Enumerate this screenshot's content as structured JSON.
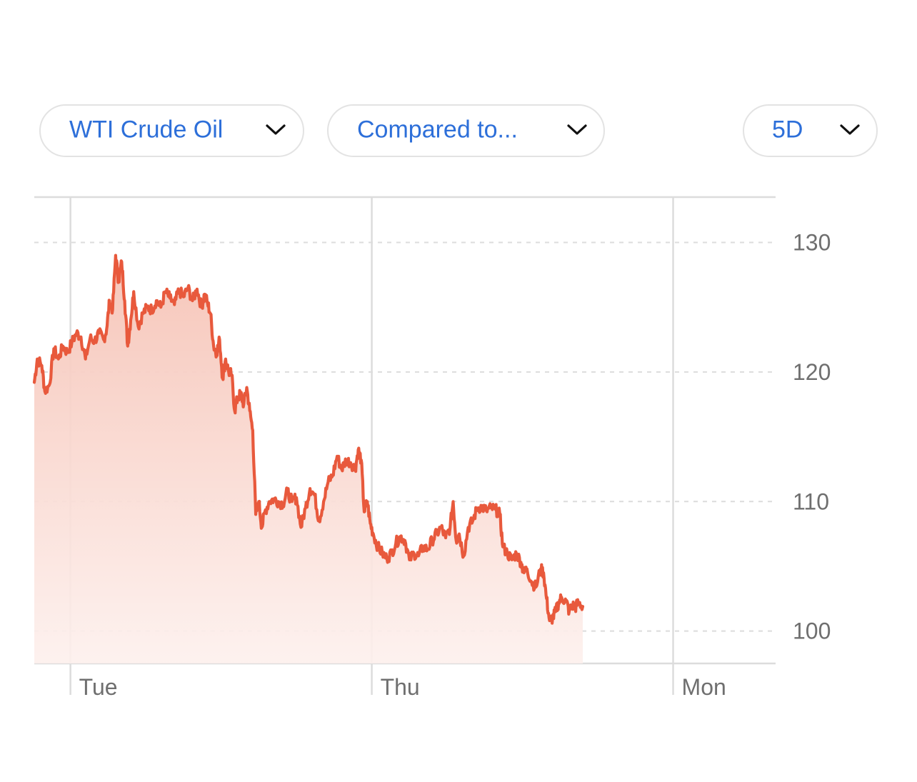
{
  "controls": {
    "symbol_label": "WTI Crude Oil",
    "compare_label": "Compared to...",
    "range_label": "5D",
    "chevron_icon": "chevron-down-icon"
  },
  "colors": {
    "accent_text": "#2d6fd9",
    "line": "#e8593c",
    "fill_top": "#f6c3b6",
    "fill_bottom": "#fdf0ed",
    "grid": "#dcdcdc",
    "axis_text": "#6f6f6f"
  },
  "chart_data": {
    "type": "area",
    "title": "",
    "xlabel": "",
    "ylabel": "",
    "ylim": [
      97.5,
      133.5
    ],
    "y_ticks": [
      100,
      110,
      120,
      130
    ],
    "y_axis_position": "right",
    "grid": "dashed horizontal at y ticks, solid vertical at day starts",
    "x_ticks": [
      {
        "label": "Tue",
        "x": 1.0
      },
      {
        "label": "Thu",
        "x": 2.0
      },
      {
        "label": "Mon",
        "x": 3.0
      }
    ],
    "xlim": [
      0.88,
      3.34
    ],
    "series": [
      {
        "name": "",
        "points": [
          [
            0.88,
            119.2
          ],
          [
            0.89,
            121.0
          ],
          [
            0.905,
            120.5
          ],
          [
            0.915,
            118.5
          ],
          [
            0.93,
            119.0
          ],
          [
            0.945,
            121.8
          ],
          [
            0.96,
            121.0
          ],
          [
            0.975,
            122.0
          ],
          [
            0.99,
            121.5
          ],
          [
            1.005,
            122.3
          ],
          [
            1.02,
            123.0
          ],
          [
            1.035,
            122.7
          ],
          [
            1.05,
            121.0
          ],
          [
            1.065,
            122.6
          ],
          [
            1.08,
            122.4
          ],
          [
            1.095,
            123.0
          ],
          [
            1.11,
            122.5
          ],
          [
            1.12,
            123.3
          ],
          [
            1.13,
            125.5
          ],
          [
            1.14,
            124.8
          ],
          [
            1.15,
            129.0
          ],
          [
            1.16,
            127.0
          ],
          [
            1.17,
            128.5
          ],
          [
            1.18,
            125.5
          ],
          [
            1.19,
            122.0
          ],
          [
            1.2,
            124.0
          ],
          [
            1.21,
            126.2
          ],
          [
            1.225,
            123.5
          ],
          [
            1.24,
            124.5
          ],
          [
            1.255,
            125.0
          ],
          [
            1.27,
            124.8
          ],
          [
            1.285,
            125.5
          ],
          [
            1.3,
            125.0
          ],
          [
            1.315,
            126.2
          ],
          [
            1.33,
            125.7
          ],
          [
            1.345,
            125.2
          ],
          [
            1.36,
            126.3
          ],
          [
            1.375,
            125.8
          ],
          [
            1.39,
            126.5
          ],
          [
            1.405,
            125.5
          ],
          [
            1.42,
            126.4
          ],
          [
            1.435,
            125.0
          ],
          [
            1.445,
            126.0
          ],
          [
            1.455,
            125.3
          ],
          [
            1.465,
            124.5
          ],
          [
            1.475,
            122.0
          ],
          [
            1.485,
            121.5
          ],
          [
            1.495,
            122.5
          ],
          [
            1.505,
            119.5
          ],
          [
            1.515,
            121.0
          ],
          [
            1.525,
            120.0
          ],
          [
            1.535,
            119.8
          ],
          [
            1.545,
            117.0
          ],
          [
            1.555,
            118.0
          ],
          [
            1.565,
            118.3
          ],
          [
            1.575,
            117.5
          ],
          [
            1.585,
            118.8
          ],
          [
            1.595,
            117.0
          ],
          [
            1.605,
            115.5
          ],
          [
            1.615,
            109.0
          ],
          [
            1.625,
            110.0
          ],
          [
            1.635,
            108.0
          ],
          [
            1.645,
            109.2
          ],
          [
            1.66,
            110.0
          ],
          [
            1.675,
            110.2
          ],
          [
            1.69,
            110.0
          ],
          [
            1.705,
            109.8
          ],
          [
            1.72,
            110.8
          ],
          [
            1.735,
            110.0
          ],
          [
            1.75,
            110.3
          ],
          [
            1.765,
            108.0
          ],
          [
            1.78,
            109.5
          ],
          [
            1.795,
            111.0
          ],
          [
            1.81,
            110.5
          ],
          [
            1.825,
            108.5
          ],
          [
            1.84,
            110.0
          ],
          [
            1.855,
            111.5
          ],
          [
            1.87,
            112.0
          ],
          [
            1.885,
            113.5
          ],
          [
            1.9,
            112.5
          ],
          [
            1.915,
            113.2
          ],
          [
            1.93,
            113.0
          ],
          [
            1.945,
            112.5
          ],
          [
            1.955,
            114.0
          ],
          [
            1.965,
            113.2
          ],
          [
            1.975,
            109.2
          ],
          [
            1.985,
            110.0
          ],
          [
            1.995,
            108.3
          ],
          [
            2.005,
            107.5
          ],
          [
            2.02,
            106.5
          ],
          [
            2.035,
            106.0
          ],
          [
            2.05,
            105.6
          ],
          [
            2.065,
            106.0
          ],
          [
            2.08,
            106.8
          ],
          [
            2.095,
            107.3
          ],
          [
            2.11,
            107.0
          ],
          [
            2.125,
            105.5
          ],
          [
            2.14,
            106.0
          ],
          [
            2.155,
            105.8
          ],
          [
            2.17,
            106.5
          ],
          [
            2.185,
            106.3
          ],
          [
            2.2,
            107.0
          ],
          [
            2.215,
            107.5
          ],
          [
            2.23,
            108.0
          ],
          [
            2.245,
            107.2
          ],
          [
            2.26,
            108.0
          ],
          [
            2.27,
            110.0
          ],
          [
            2.28,
            107.0
          ],
          [
            2.29,
            107.5
          ],
          [
            2.305,
            105.8
          ],
          [
            2.32,
            108.0
          ],
          [
            2.335,
            108.5
          ],
          [
            2.35,
            109.5
          ],
          [
            2.365,
            109.6
          ],
          [
            2.38,
            109.3
          ],
          [
            2.395,
            109.5
          ],
          [
            2.41,
            109.4
          ],
          [
            2.425,
            109.0
          ],
          [
            2.435,
            106.5
          ],
          [
            2.45,
            106.0
          ],
          [
            2.465,
            105.5
          ],
          [
            2.48,
            106.0
          ],
          [
            2.495,
            105.3
          ],
          [
            2.505,
            104.5
          ],
          [
            2.515,
            104.8
          ],
          [
            2.53,
            103.8
          ],
          [
            2.545,
            103.4
          ],
          [
            2.56,
            104.8
          ],
          [
            2.57,
            104.5
          ],
          [
            2.58,
            102.5
          ],
          [
            2.59,
            100.8
          ],
          [
            2.6,
            101.0
          ],
          [
            2.61,
            101.5
          ],
          [
            2.62,
            102.2
          ],
          [
            2.63,
            102.6
          ],
          [
            2.645,
            102.3
          ],
          [
            2.655,
            101.5
          ],
          [
            2.665,
            102.0
          ],
          [
            2.675,
            101.8
          ],
          [
            2.685,
            102.2
          ],
          [
            2.7,
            101.9
          ]
        ]
      }
    ]
  }
}
